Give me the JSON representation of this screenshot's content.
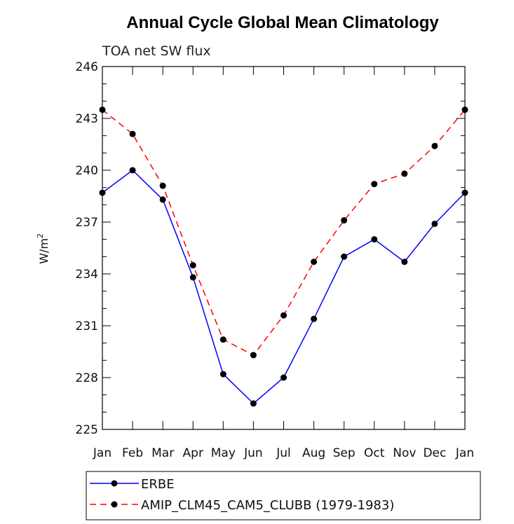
{
  "chart_data": {
    "type": "line",
    "title": "Annual Cycle Global Mean Climatology",
    "subtitle": "TOA net SW flux",
    "ylabel": "W/m",
    "ylabel_superscript": "2",
    "xlabel": "",
    "categories": [
      "Jan",
      "Feb",
      "Mar",
      "Apr",
      "May",
      "Jun",
      "Jul",
      "Aug",
      "Sep",
      "Oct",
      "Nov",
      "Dec",
      "Jan"
    ],
    "ylim": [
      225,
      246
    ],
    "yticks": [
      225,
      228,
      231,
      234,
      237,
      240,
      243,
      246
    ],
    "series": [
      {
        "name": "ERBE",
        "color": "#0000ff",
        "style": "solid",
        "marker": "circle",
        "values": [
          238.7,
          240.0,
          238.3,
          233.8,
          228.2,
          226.5,
          228.0,
          231.4,
          235.0,
          236.0,
          234.7,
          236.9,
          238.7
        ]
      },
      {
        "name": "AMIP_CLM45_CAM5_CLUBB (1979-1983)",
        "color": "#ff0000",
        "style": "dashed",
        "marker": "circle",
        "values": [
          243.5,
          242.1,
          239.1,
          234.5,
          230.2,
          229.3,
          231.6,
          234.7,
          237.1,
          239.2,
          239.8,
          241.4,
          243.5
        ]
      }
    ],
    "legend_position": "bottom-left"
  }
}
